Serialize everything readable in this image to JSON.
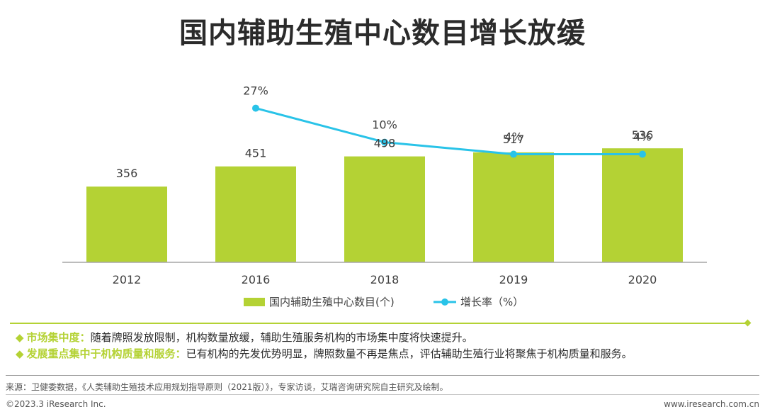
{
  "title": "国内辅助生殖中心数目增长放缓",
  "chart_data": {
    "type": "bar+line",
    "categories": [
      "2012",
      "2016",
      "2018",
      "2019",
      "2020"
    ],
    "series": [
      {
        "name": "国内辅助生殖中心数目(个)",
        "type": "bar",
        "color": "#b4d234",
        "values": [
          356,
          451,
          498,
          517,
          536
        ],
        "labels": [
          "356",
          "451",
          "498",
          "517",
          "536"
        ]
      },
      {
        "name": "增长率（%）",
        "type": "line",
        "color": "#29c3e8",
        "values": [
          null,
          27,
          10,
          4,
          4
        ],
        "labels": [
          "",
          "27%",
          "10%",
          "4%",
          "4%"
        ]
      }
    ],
    "bar_ylim": [
      0,
      800
    ],
    "line_ylim": [
      -50,
      35
    ],
    "legend_position": "bottom-center",
    "grid": false
  },
  "notes": [
    {
      "title": "市场集中度：",
      "text": "随着牌照发放限制，机构数量放缓，辅助生殖服务机构的市场集中度将快速提升。"
    },
    {
      "title": "发展重点集中于机构质量和服务：",
      "text": "已有机构的先发优势明显，牌照数量不再是焦点，评估辅助生殖行业将聚焦于机构质量和服务。"
    }
  ],
  "bullet_glyph": "◆",
  "source": "来源：卫健委数据，《人类辅助生殖技术应用规划指导原则（2021版）》，专家访谈，艾瑞咨询研究院自主研究及绘制。",
  "copyright": "©2023.3 iResearch Inc.",
  "website": "www.iresearch.com.cn"
}
